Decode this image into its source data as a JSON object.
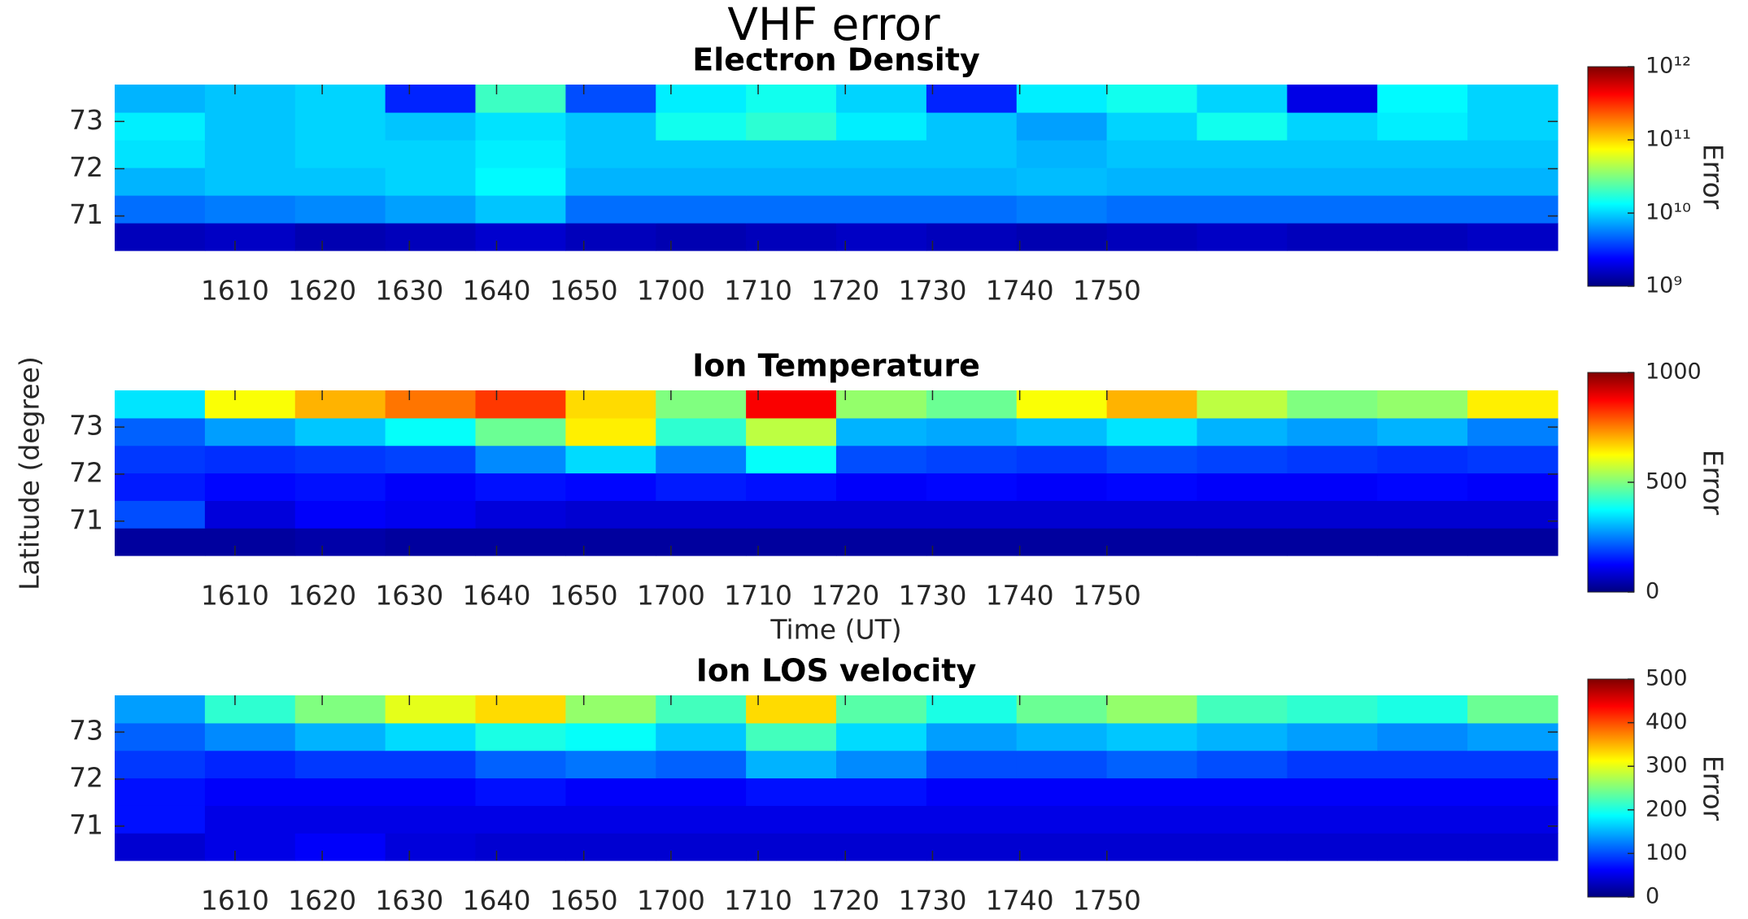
{
  "title": "VHF error",
  "ylabel": "Latitude (degree)",
  "chart_data": [
    {
      "type": "heatmap",
      "title": "Electron Density",
      "colormap": "jet",
      "xlim": [
        956.2,
        1121.7
      ],
      "xticks": [
        {
          "value": 970,
          "label": "1610"
        },
        {
          "value": 980,
          "label": "1620"
        },
        {
          "value": 990,
          "label": "1630"
        },
        {
          "value": 1000,
          "label": "1640"
        },
        {
          "value": 1010,
          "label": "1650"
        },
        {
          "value": 1020,
          "label": "1700"
        },
        {
          "value": 1030,
          "label": "1710"
        },
        {
          "value": 1040,
          "label": "1720"
        },
        {
          "value": 1050,
          "label": "1730"
        },
        {
          "value": 1060,
          "label": "1740"
        },
        {
          "value": 1070,
          "label": "1750"
        }
      ],
      "ylim": [
        70.27,
        73.78
      ],
      "yticks": [
        71,
        72,
        73
      ],
      "z": [
        [
          1500000000.0,
          1600000000.0,
          1400000000.0,
          1500000000.0,
          1700000000.0,
          1500000000.0,
          1400000000.0,
          1500000000.0,
          1600000000.0,
          1500000000.0,
          1400000000.0,
          1500000000.0,
          1600000000.0,
          1500000000.0,
          1500000000.0,
          1600000000.0
        ],
        [
          5000000000.0,
          5500000000.0,
          6000000000.0,
          7000000000.0,
          9000000000.0,
          5000000000.0,
          5000000000.0,
          5000000000.0,
          5000000000.0,
          5000000000.0,
          5500000000.0,
          5000000000.0,
          5000000000.0,
          5000000000.0,
          5000000000.0,
          5000000000.0
        ],
        [
          8000000000.0,
          9000000000.0,
          9000000000.0,
          10000000000.0,
          13000000000.0,
          8000000000.0,
          8000000000.0,
          8000000000.0,
          8000000000.0,
          8000000000.0,
          8500000000.0,
          8000000000.0,
          8000000000.0,
          8000000000.0,
          8000000000.0,
          8000000000.0
        ],
        [
          11000000000.0,
          9000000000.0,
          10000000000.0,
          10000000000.0,
          12000000000.0,
          9000000000.0,
          9000000000.0,
          9000000000.0,
          9000000000.0,
          9000000000.0,
          8000000000.0,
          9000000000.0,
          9000000000.0,
          9000000000.0,
          9000000000.0,
          9000000000.0
        ],
        [
          12000000000.0,
          9000000000.0,
          10000000000.0,
          9000000000.0,
          11000000000.0,
          9000000000.0,
          15000000000.0,
          18000000000.0,
          12000000000.0,
          9000000000.0,
          7000000000.0,
          10000000000.0,
          15000000000.0,
          10000000000.0,
          12000000000.0,
          10000000000.0
        ],
        [
          8000000000.0,
          9000000000.0,
          10000000000.0,
          3000000000.0,
          20000000000.0,
          4000000000.0,
          12000000000.0,
          15000000000.0,
          10000000000.0,
          3000000000.0,
          12000000000.0,
          15000000000.0,
          10000000000.0,
          2000000000.0,
          13000000000.0,
          10000000000.0
        ]
      ],
      "colorbar": {
        "label": "Error",
        "log": true,
        "lim": [
          1000000000.0,
          1000000000000.0
        ],
        "ticks": [
          {
            "value": 1000000000.0,
            "label": "10⁹"
          },
          {
            "value": 10000000000.0,
            "label": "10¹⁰"
          },
          {
            "value": 100000000000.0,
            "label": "10¹¹"
          },
          {
            "value": 1000000000000.0,
            "label": "10¹²"
          }
        ]
      }
    },
    {
      "type": "heatmap",
      "title": "Ion Temperature",
      "xlabel": "Time (UT)",
      "colormap": "jet",
      "xlim": [
        956.2,
        1121.7
      ],
      "xticks": [
        {
          "value": 970,
          "label": "1610"
        },
        {
          "value": 980,
          "label": "1620"
        },
        {
          "value": 990,
          "label": "1630"
        },
        {
          "value": 1000,
          "label": "1640"
        },
        {
          "value": 1010,
          "label": "1650"
        },
        {
          "value": 1020,
          "label": "1700"
        },
        {
          "value": 1030,
          "label": "1710"
        },
        {
          "value": 1040,
          "label": "1720"
        },
        {
          "value": 1050,
          "label": "1730"
        },
        {
          "value": 1060,
          "label": "1740"
        },
        {
          "value": 1070,
          "label": "1750"
        }
      ],
      "ylim": [
        70.27,
        73.78
      ],
      "yticks": [
        71,
        72,
        73
      ],
      "z": [
        [
          30,
          30,
          40,
          30,
          30,
          30,
          30,
          30,
          30,
          30,
          30,
          30,
          30,
          30,
          30,
          30
        ],
        [
          200,
          90,
          120,
          110,
          90,
          80,
          80,
          80,
          80,
          80,
          80,
          80,
          80,
          80,
          80,
          80
        ],
        [
          150,
          130,
          140,
          120,
          140,
          130,
          150,
          140,
          120,
          130,
          120,
          130,
          120,
          120,
          130,
          120
        ],
        [
          180,
          170,
          180,
          190,
          260,
          340,
          250,
          380,
          200,
          190,
          180,
          200,
          190,
          180,
          170,
          180
        ],
        [
          220,
          280,
          320,
          380,
          480,
          640,
          420,
          560,
          300,
          290,
          310,
          350,
          300,
          280,
          300,
          250
        ],
        [
          350,
          620,
          700,
          760,
          820,
          660,
          500,
          880,
          520,
          480,
          620,
          700,
          560,
          500,
          520,
          640
        ]
      ],
      "colorbar": {
        "label": "Error",
        "log": false,
        "lim": [
          0,
          1000
        ],
        "ticks": [
          0,
          500,
          1000
        ]
      }
    },
    {
      "type": "heatmap",
      "title": "Ion LOS velocity",
      "colormap": "jet",
      "xlim": [
        956.2,
        1121.7
      ],
      "xticks": [
        {
          "value": 970,
          "label": "1610"
        },
        {
          "value": 980,
          "label": "1620"
        },
        {
          "value": 990,
          "label": "1630"
        },
        {
          "value": 1000,
          "label": "1640"
        },
        {
          "value": 1010,
          "label": "1650"
        },
        {
          "value": 1020,
          "label": "1700"
        },
        {
          "value": 1030,
          "label": "1710"
        },
        {
          "value": 1040,
          "label": "1720"
        },
        {
          "value": 1050,
          "label": "1730"
        },
        {
          "value": 1060,
          "label": "1740"
        },
        {
          "value": 1070,
          "label": "1750"
        }
      ],
      "ylim": [
        70.27,
        73.78
      ],
      "yticks": [
        71,
        72,
        73
      ],
      "z": [
        [
          40,
          50,
          60,
          45,
          40,
          40,
          40,
          40,
          40,
          40,
          40,
          40,
          40,
          40,
          40,
          40
        ],
        [
          70,
          50,
          50,
          50,
          50,
          50,
          50,
          50,
          50,
          50,
          50,
          50,
          50,
          50,
          50,
          50
        ],
        [
          70,
          60,
          60,
          60,
          70,
          60,
          60,
          70,
          70,
          60,
          60,
          60,
          60,
          60,
          60,
          60
        ],
        [
          90,
          80,
          90,
          90,
          110,
          120,
          110,
          150,
          130,
          100,
          100,
          110,
          100,
          90,
          90,
          90
        ],
        [
          110,
          130,
          150,
          170,
          200,
          190,
          160,
          220,
          170,
          140,
          150,
          160,
          150,
          140,
          130,
          140
        ],
        [
          140,
          210,
          250,
          300,
          330,
          260,
          220,
          330,
          230,
          200,
          240,
          260,
          220,
          210,
          200,
          240
        ]
      ],
      "colorbar": {
        "label": "Error",
        "log": false,
        "lim": [
          0,
          500
        ],
        "ticks": [
          0,
          100,
          200,
          300,
          400,
          500
        ]
      }
    }
  ]
}
